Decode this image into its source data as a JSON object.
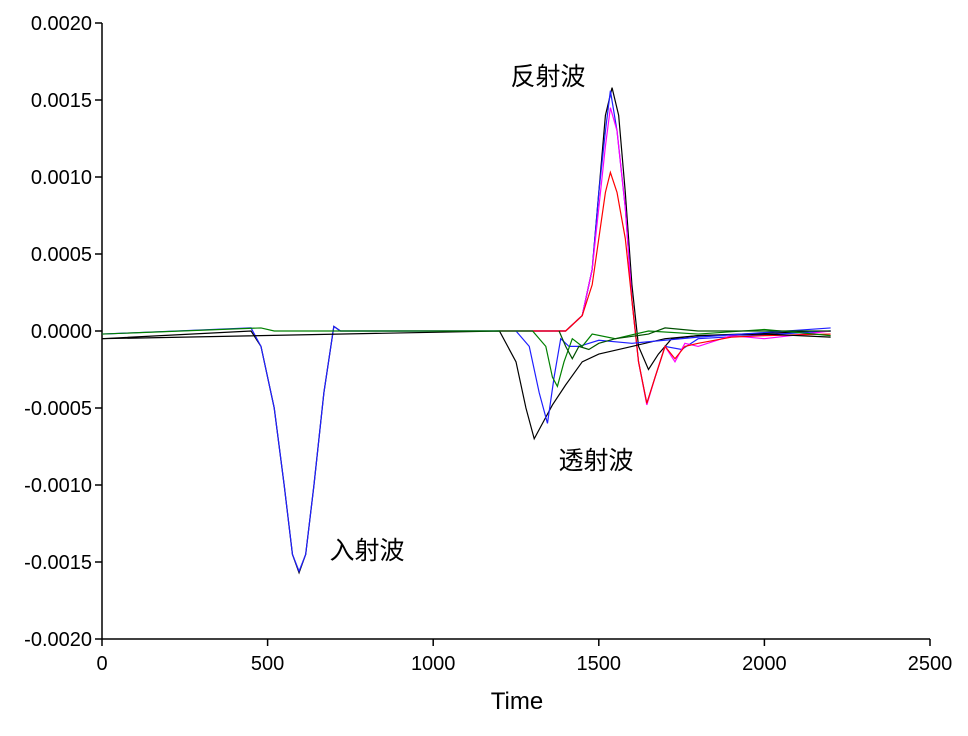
{
  "chart_data": {
    "type": "line",
    "x_label": "Time",
    "annotations": [
      "反射波",
      "透射波",
      "入射波"
    ],
    "xlim": [
      0,
      2500
    ],
    "xticks": [
      0,
      500,
      1000,
      1500,
      2000,
      2500
    ],
    "ylim": [
      -0.002,
      0.002
    ],
    "yticks": [
      {
        "value": -0.002,
        "label": "-0.0020"
      },
      {
        "value": -0.0015,
        "label": "-0.0015"
      },
      {
        "value": -0.001,
        "label": "-0.0010"
      },
      {
        "value": -0.0005,
        "label": "-0.0005"
      },
      {
        "value": 0,
        "label": "0.0000"
      },
      {
        "value": 0.0005,
        "label": "0.0005"
      },
      {
        "value": 0.001,
        "label": "0.0010"
      },
      {
        "value": 0.0015,
        "label": "0.0015"
      },
      {
        "value": 0.002,
        "label": "0.0020"
      }
    ],
    "series": [
      {
        "color": "#000000",
        "x": [
          0,
          450,
          480,
          520,
          550,
          575,
          595,
          615,
          640,
          670,
          700,
          720,
          750,
          1400,
          1450,
          1480,
          1500,
          1520,
          1540,
          1560,
          1580,
          1600,
          1620,
          1650,
          1680,
          1720,
          1800,
          2200
        ],
        "values": [
          -5e-05,
          0,
          -0.0001,
          -0.0005,
          -0.001,
          -0.00145,
          -0.00157,
          -0.00145,
          -0.001,
          -0.0004,
          3e-05,
          0,
          0,
          0,
          0.0001,
          0.0004,
          0.0009,
          0.0014,
          0.00158,
          0.0014,
          0.0009,
          0.0003,
          -0.0001,
          -0.00025,
          -0.00015,
          -5e-05,
          -3e-05,
          0
        ]
      },
      {
        "color": "#1f1fff",
        "x": [
          0,
          450,
          480,
          520,
          550,
          575,
          595,
          615,
          640,
          670,
          700,
          720,
          750,
          1400,
          1450,
          1480,
          1500,
          1520,
          1535,
          1555,
          1580,
          1600,
          1620,
          1645,
          1670,
          1700,
          1750,
          1800,
          2200
        ],
        "values": [
          -2e-05,
          2e-05,
          -0.0001,
          -0.0005,
          -0.001,
          -0.00145,
          -0.00156,
          -0.00145,
          -0.001,
          -0.0004,
          3e-05,
          0,
          0,
          0,
          0.0001,
          0.0004,
          0.0009,
          0.0013,
          0.00156,
          0.0013,
          0.0008,
          0.0002,
          -0.0002,
          -0.00047,
          -0.0003,
          -0.0001,
          -0.00012,
          -5e-05,
          0
        ]
      },
      {
        "color": "#ff00ff",
        "x": [
          1200,
          1400,
          1450,
          1480,
          1500,
          1520,
          1535,
          1555,
          1580,
          1600,
          1620,
          1645,
          1670,
          1700,
          1730,
          1760,
          1800,
          1900,
          2000,
          2200
        ],
        "values": [
          0,
          0,
          0.0001,
          0.0004,
          0.0008,
          0.0012,
          0.00145,
          0.0013,
          0.0008,
          0.0002,
          -0.0002,
          -0.00048,
          -0.0003,
          -0.0001,
          -0.0002,
          -8e-05,
          -0.0001,
          -3e-05,
          -5e-05,
          0
        ]
      },
      {
        "color": "#ff0000",
        "x": [
          1200,
          1400,
          1450,
          1480,
          1500,
          1520,
          1535,
          1555,
          1580,
          1600,
          1620,
          1645,
          1670,
          1700,
          1730,
          1760,
          1800,
          1900,
          2000,
          2200
        ],
        "values": [
          0,
          0,
          0.0001,
          0.0003,
          0.0006,
          0.0009,
          0.00103,
          0.0009,
          0.0006,
          0.0002,
          -0.0002,
          -0.00047,
          -0.0003,
          -0.0001,
          -0.00018,
          -0.0001,
          -8e-05,
          -4e-05,
          -3e-05,
          -2e-05
        ]
      },
      {
        "color": "#000000",
        "x": [
          0,
          1200,
          1250,
          1280,
          1305,
          1330,
          1360,
          1400,
          1450,
          1500,
          1600,
          1700,
          1800,
          2000,
          2200
        ],
        "values": [
          -5e-05,
          0,
          -0.0002,
          -0.0005,
          -0.0007,
          -0.0006,
          -0.00048,
          -0.00035,
          -0.0002,
          -0.00015,
          -0.0001,
          -5e-05,
          -3e-05,
          -2e-05,
          -4e-05
        ]
      },
      {
        "color": "#1f1fff",
        "x": [
          1250,
          1290,
          1320,
          1345,
          1365,
          1385,
          1410,
          1440,
          1500,
          1600,
          1800,
          2200
        ],
        "values": [
          0,
          -0.0001,
          -0.0004,
          -0.0006,
          -0.0003,
          -5e-05,
          -0.0001,
          -0.0001,
          -6e-05,
          -8e-05,
          -4e-05,
          2e-05
        ]
      },
      {
        "color": "#008000",
        "x": [
          0,
          480,
          520,
          1300,
          1340,
          1360,
          1375,
          1395,
          1420,
          1450,
          1480,
          1550,
          1650,
          1800,
          2000,
          2200
        ],
        "values": [
          -2e-05,
          2e-05,
          0,
          0,
          -0.0001,
          -0.0003,
          -0.00036,
          -0.0002,
          -5e-05,
          -0.0001,
          -2e-05,
          -5e-05,
          0,
          -2e-05,
          1e-05,
          -3e-05
        ]
      },
      {
        "color": "#005000",
        "x": [
          1380,
          1400,
          1420,
          1440,
          1470,
          1500,
          1550,
          1650,
          1700,
          1800,
          2200
        ],
        "values": [
          0,
          -0.0001,
          -0.00018,
          -0.0001,
          -0.00012,
          -8e-05,
          -5e-05,
          -2e-05,
          2e-05,
          0,
          0
        ]
      }
    ]
  }
}
